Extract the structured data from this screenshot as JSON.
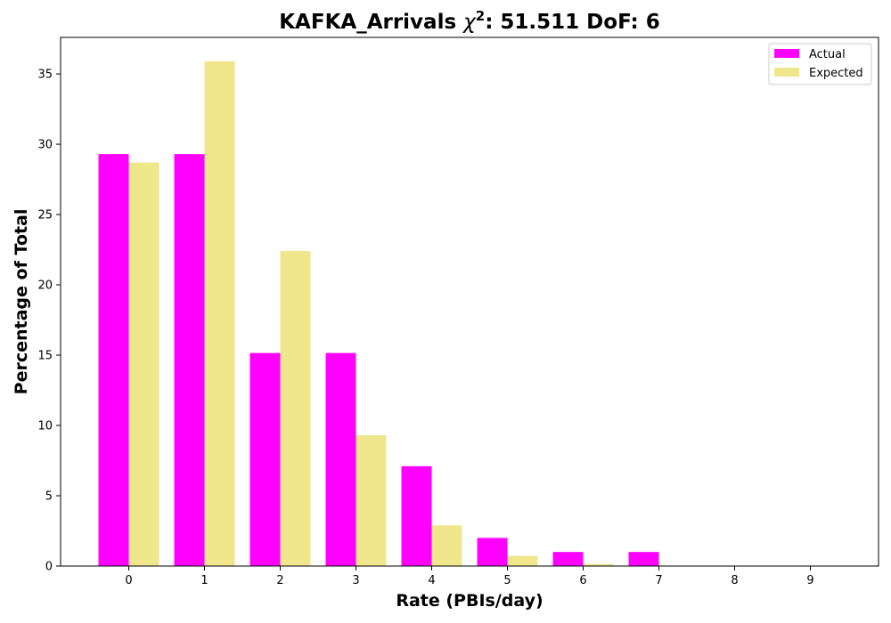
{
  "chart_data": {
    "type": "bar",
    "title_prefix": "KAFKA_Arrivals ",
    "title_chi": "χ",
    "title_sup": "2",
    "title_suffix": ": 51.511 DoF: 6",
    "xlabel": "Rate (PBIs/day)",
    "ylabel": "Percentage of Total",
    "categories": [
      "0",
      "1",
      "2",
      "3",
      "4",
      "5",
      "6",
      "7",
      "8",
      "9"
    ],
    "ylim": [
      0,
      37.6
    ],
    "yticks": [
      0,
      5,
      10,
      15,
      20,
      25,
      30,
      35
    ],
    "legend_position": "top-right",
    "grid": false,
    "series": [
      {
        "name": "Actual",
        "color": "#ff00ff",
        "values": [
          29.3,
          29.3,
          15.15,
          15.15,
          7.1,
          2.0,
          1.0,
          1.0,
          0,
          0
        ]
      },
      {
        "name": "Expected",
        "color": "#f0e68c",
        "values": [
          28.7,
          35.9,
          22.4,
          9.3,
          2.9,
          0.73,
          0.15,
          0.03,
          0,
          0
        ]
      }
    ]
  }
}
